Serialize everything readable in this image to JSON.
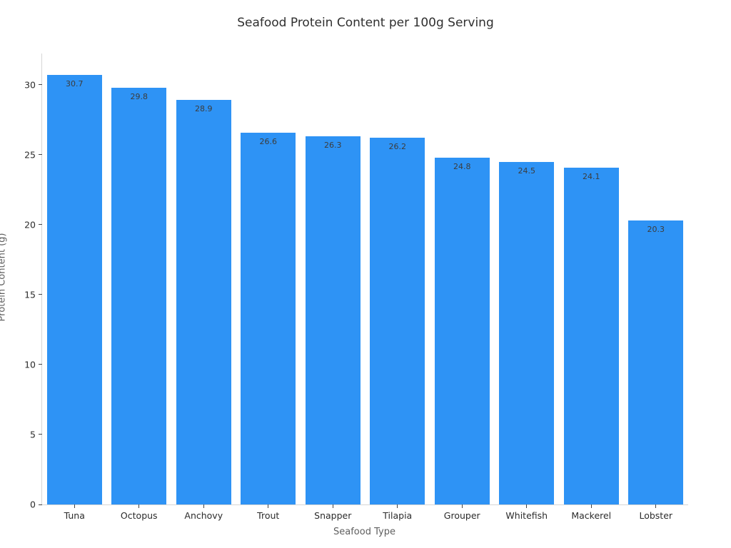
{
  "chart_data": {
    "type": "bar",
    "title": "Seafood Protein Content per 100g Serving",
    "xlabel": "Seafood Type",
    "ylabel": "Protein Content (g)",
    "categories": [
      "Tuna",
      "Octopus",
      "Anchovy",
      "Trout",
      "Snapper",
      "Tilapia",
      "Grouper",
      "Whitefish",
      "Mackerel",
      "Lobster"
    ],
    "values": [
      30.7,
      29.8,
      28.9,
      26.6,
      26.3,
      26.2,
      24.8,
      24.5,
      24.1,
      20.3
    ],
    "value_labels": [
      "30.7",
      "29.8",
      "28.9",
      "26.6",
      "26.3",
      "26.2",
      "24.8",
      "24.5",
      "24.1",
      "20.3"
    ],
    "yticks": [
      0,
      5,
      10,
      15,
      20,
      25,
      30
    ],
    "ylim": [
      0,
      32.24
    ],
    "bar_color": "#2E93F5",
    "value_label_color": "#3c3c3c",
    "spine_color": "#d6d6d6",
    "tick_color": "#444444",
    "grid": false,
    "legend_position": "none",
    "bar_width_fraction": 0.85
  }
}
